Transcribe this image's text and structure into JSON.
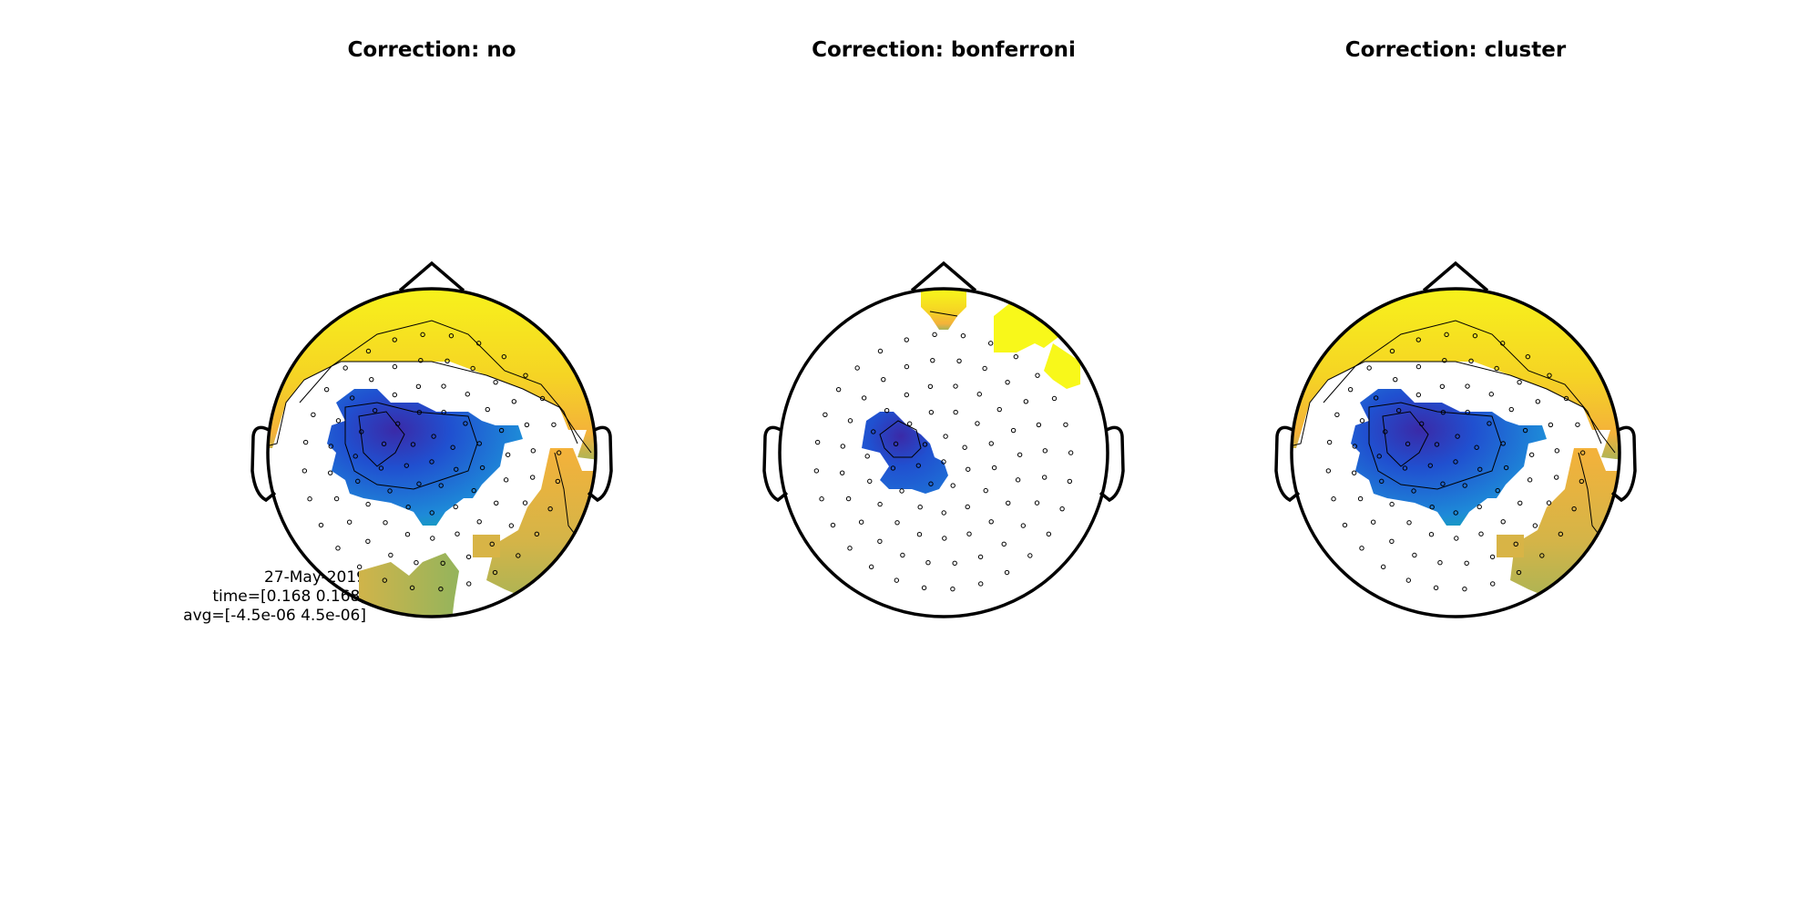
{
  "figure": {
    "panels": [
      {
        "title": "Correction: no"
      },
      {
        "title": "Correction: bonferroni"
      },
      {
        "title": "Correction: cluster"
      }
    ],
    "info_lines": {
      "date": "27-May-2019",
      "time": "time=[0.168 0.168]",
      "avg": "avg=[-4.5e-06 4.5e-06]"
    },
    "colormap": {
      "negative_strong": "#3a2aa8",
      "negative": "#1e6fd6",
      "negative_edge": "#14a4b4",
      "neutral_green": "#94b45c",
      "positive": "#f4b23a",
      "positive_strong": "#f8f81a",
      "head_outline": "#000000"
    }
  }
}
